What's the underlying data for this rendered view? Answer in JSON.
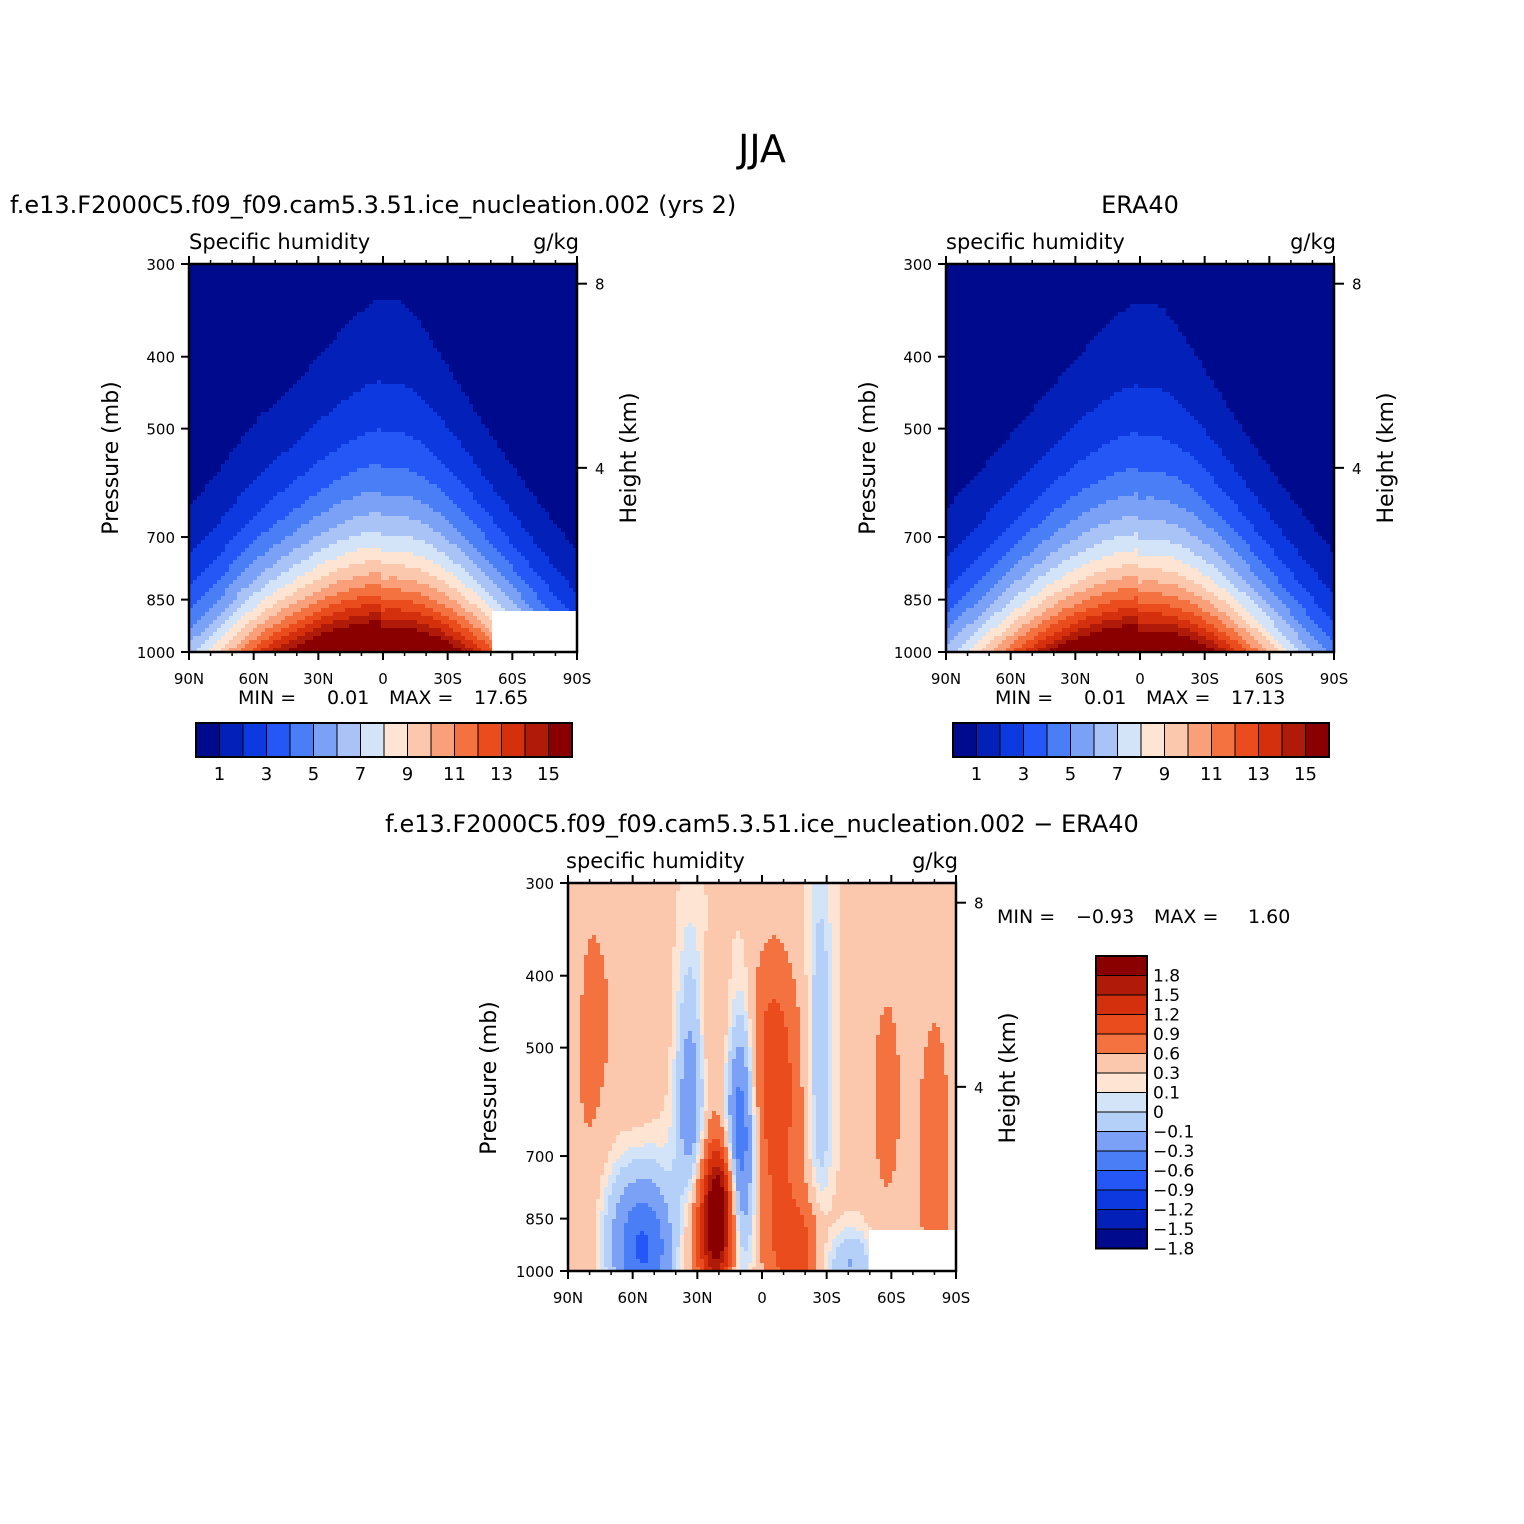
{
  "page": {
    "title": "JJA"
  },
  "panels": {
    "model": {
      "header": "f.e13.F2000C5.f09_f09.cam5.3.51.ice_nucleation.002 (yrs 2)",
      "var_label": "Specific humidity",
      "units": "g/kg",
      "y_label": "Pressure (mb)",
      "y2_label": "Height (km)",
      "min_label": "MIN =",
      "min_value": "0.01",
      "max_label": "MAX =",
      "max_value": "17.65"
    },
    "obs": {
      "header": "ERA40",
      "var_label": "specific humidity",
      "units": "g/kg",
      "y_label": "Pressure (mb)",
      "y2_label": "Height (km)",
      "min_label": "MIN =",
      "min_value": "0.01",
      "max_label": "MAX =",
      "max_value": "17.13"
    },
    "diff": {
      "header": "f.e13.F2000C5.f09_f09.cam5.3.51.ice_nucleation.002 − ERA40",
      "var_label": "specific humidity",
      "units": "g/kg",
      "y_label": "Pressure (mb)",
      "y2_label": "Height (km)",
      "min_label": "MIN =",
      "min_value": "−0.93",
      "max_label": "MAX =",
      "max_value": "1.60"
    }
  },
  "chart_data": [
    {
      "type": "heatmap",
      "name": "model",
      "x_ticks": [
        "90N",
        "60N",
        "30N",
        "0",
        "30S",
        "60S",
        "90S"
      ],
      "x_values": [
        90,
        60,
        30,
        0,
        -30,
        -60,
        -90
      ],
      "y_ticks": [
        "300",
        "400",
        "500",
        "700",
        "850",
        "1000"
      ],
      "y_values": [
        300,
        400,
        500,
        700,
        850,
        1000
      ],
      "y2_ticks": [
        "8",
        "4"
      ],
      "y2_values": [
        8,
        4
      ],
      "levels": [
        1,
        2,
        3,
        4,
        5,
        6,
        7,
        8,
        9,
        10,
        11,
        12,
        13,
        14,
        15
      ],
      "colorbar_labels": [
        "1",
        "3",
        "5",
        "7",
        "9",
        "11",
        "13",
        "15"
      ],
      "peak": {
        "lat": -5,
        "pressure": 1000,
        "value": 17.65
      },
      "min": 0.01,
      "max": 17.65
    },
    {
      "type": "heatmap",
      "name": "obs",
      "x_ticks": [
        "90N",
        "60N",
        "30N",
        "0",
        "30S",
        "60S",
        "90S"
      ],
      "x_values": [
        90,
        60,
        30,
        0,
        -30,
        -60,
        -90
      ],
      "y_ticks": [
        "300",
        "400",
        "500",
        "700",
        "850",
        "1000"
      ],
      "y_values": [
        300,
        400,
        500,
        700,
        850,
        1000
      ],
      "y2_ticks": [
        "8",
        "4"
      ],
      "y2_values": [
        8,
        4
      ],
      "levels": [
        1,
        2,
        3,
        4,
        5,
        6,
        7,
        8,
        9,
        10,
        11,
        12,
        13,
        14,
        15
      ],
      "colorbar_labels": [
        "1",
        "3",
        "5",
        "7",
        "9",
        "11",
        "13",
        "15"
      ],
      "peak": {
        "lat": -5,
        "pressure": 1000,
        "value": 17.13
      },
      "min": 0.01,
      "max": 17.13
    },
    {
      "type": "heatmap",
      "name": "diff",
      "x_ticks": [
        "90N",
        "60N",
        "30N",
        "0",
        "30S",
        "60S",
        "90S"
      ],
      "x_values": [
        90,
        60,
        30,
        0,
        -30,
        -60,
        -90
      ],
      "y_ticks": [
        "300",
        "400",
        "500",
        "700",
        "850",
        "1000"
      ],
      "y_values": [
        300,
        400,
        500,
        700,
        850,
        1000
      ],
      "y2_ticks": [
        "8",
        "4"
      ],
      "y2_values": [
        8,
        4
      ],
      "levels": [
        -1.8,
        -1.5,
        -1.2,
        -0.9,
        -0.6,
        -0.3,
        -0.1,
        0,
        0.1,
        0.3,
        0.6,
        0.9,
        1.2,
        1.5,
        1.8
      ],
      "colorbar_labels": [
        "1.8",
        "1.5",
        "1.2",
        "0.9",
        "0.6",
        "0.3",
        "0.1",
        "0",
        "−0.1",
        "−0.3",
        "−0.6",
        "−0.9",
        "−1.2",
        "−1.5",
        "−1.8"
      ],
      "min": -0.93,
      "max": 1.6
    }
  ],
  "colors": {
    "seq": [
      "#000a8c",
      "#0320b8",
      "#0c3ae0",
      "#2457f5",
      "#4a7ef6",
      "#7aa1f6",
      "#a9c3f7",
      "#d4e4f8",
      "#fde4d3",
      "#fbc8ae",
      "#f9a07a",
      "#f4723f",
      "#eb4c1e",
      "#d5300e",
      "#b01a08",
      "#8a0000"
    ],
    "div_top_down": [
      "#8a0000",
      "#b01a08",
      "#d5300e",
      "#eb4c1e",
      "#f4723f",
      "#fbc8ae",
      "#fde4d3",
      "#d4e4f8",
      "#b4cff8",
      "#7aa1f6",
      "#4a7ef6",
      "#2457f5",
      "#0c3ae0",
      "#0320b8",
      "#000a8c"
    ]
  }
}
